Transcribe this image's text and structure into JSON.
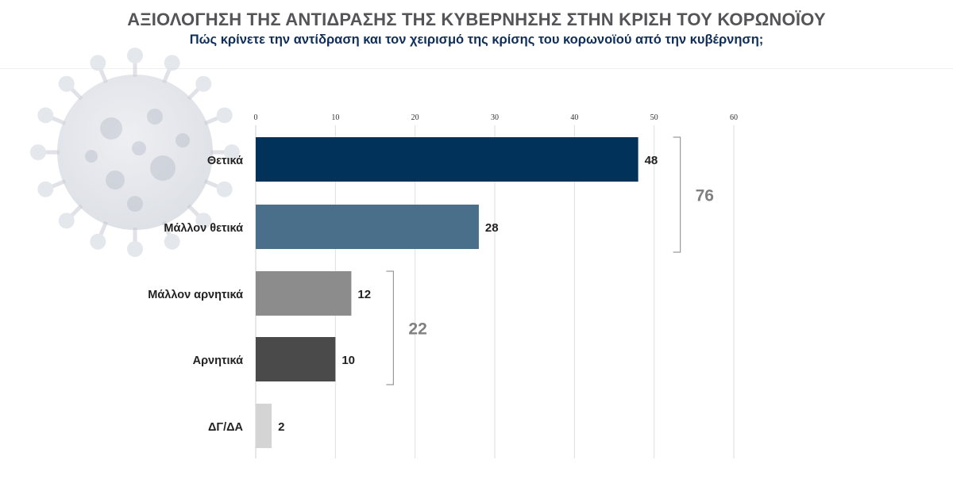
{
  "header": {
    "title": "ΑΞΙΟΛΟΓΗΣΗ ΤΗΣ ΑΝΤΙΔΡΑΣΗΣ ΤΗΣ ΚΥΒΕΡΝΗΣΗΣ ΣΤΗΝ ΚΡΙΣΗ ΤΟΥ ΚΟΡΩΝΟΪΟΥ",
    "subtitle": "Πώς κρίνετε την αντίδραση και τον χειρισμό της κρίσης του κορωνοϊού από την κυβέρνηση;"
  },
  "chart_data": {
    "type": "bar",
    "orientation": "horizontal",
    "title": "ΑΞΙΟΛΟΓΗΣΗ ΤΗΣ ΑΝΤΙΔΡΑΣΗΣ ΤΗΣ ΚΥΒΕΡΝΗΣΗΣ ΣΤΗΝ ΚΡΙΣΗ ΤΟΥ ΚΟΡΩΝΟΪΟΥ",
    "subtitle": "Πώς κρίνετε την αντίδραση και τον χειρισμό της κρίσης του κορωνοϊού από την κυβέρνηση;",
    "categories": [
      "Θετικά",
      "Μάλλον θετικά",
      "Μάλλον αρνητικά",
      "Αρνητικά",
      "ΔΓ/ΔΑ"
    ],
    "values": [
      48,
      28,
      12,
      10,
      2
    ],
    "colors": [
      "#00325a",
      "#4a6f8a",
      "#8c8c8c",
      "#4a4a4a",
      "#d4d4d4"
    ],
    "xlim": [
      0,
      60
    ],
    "xticks": [
      0,
      10,
      20,
      30,
      40,
      50,
      60
    ],
    "axis_position": "top",
    "grid": true,
    "groups": [
      {
        "total": "76",
        "from": 0,
        "to": 1
      },
      {
        "total": "22",
        "from": 2,
        "to": 3
      }
    ],
    "background_image_icon": "coronavirus-icon"
  }
}
